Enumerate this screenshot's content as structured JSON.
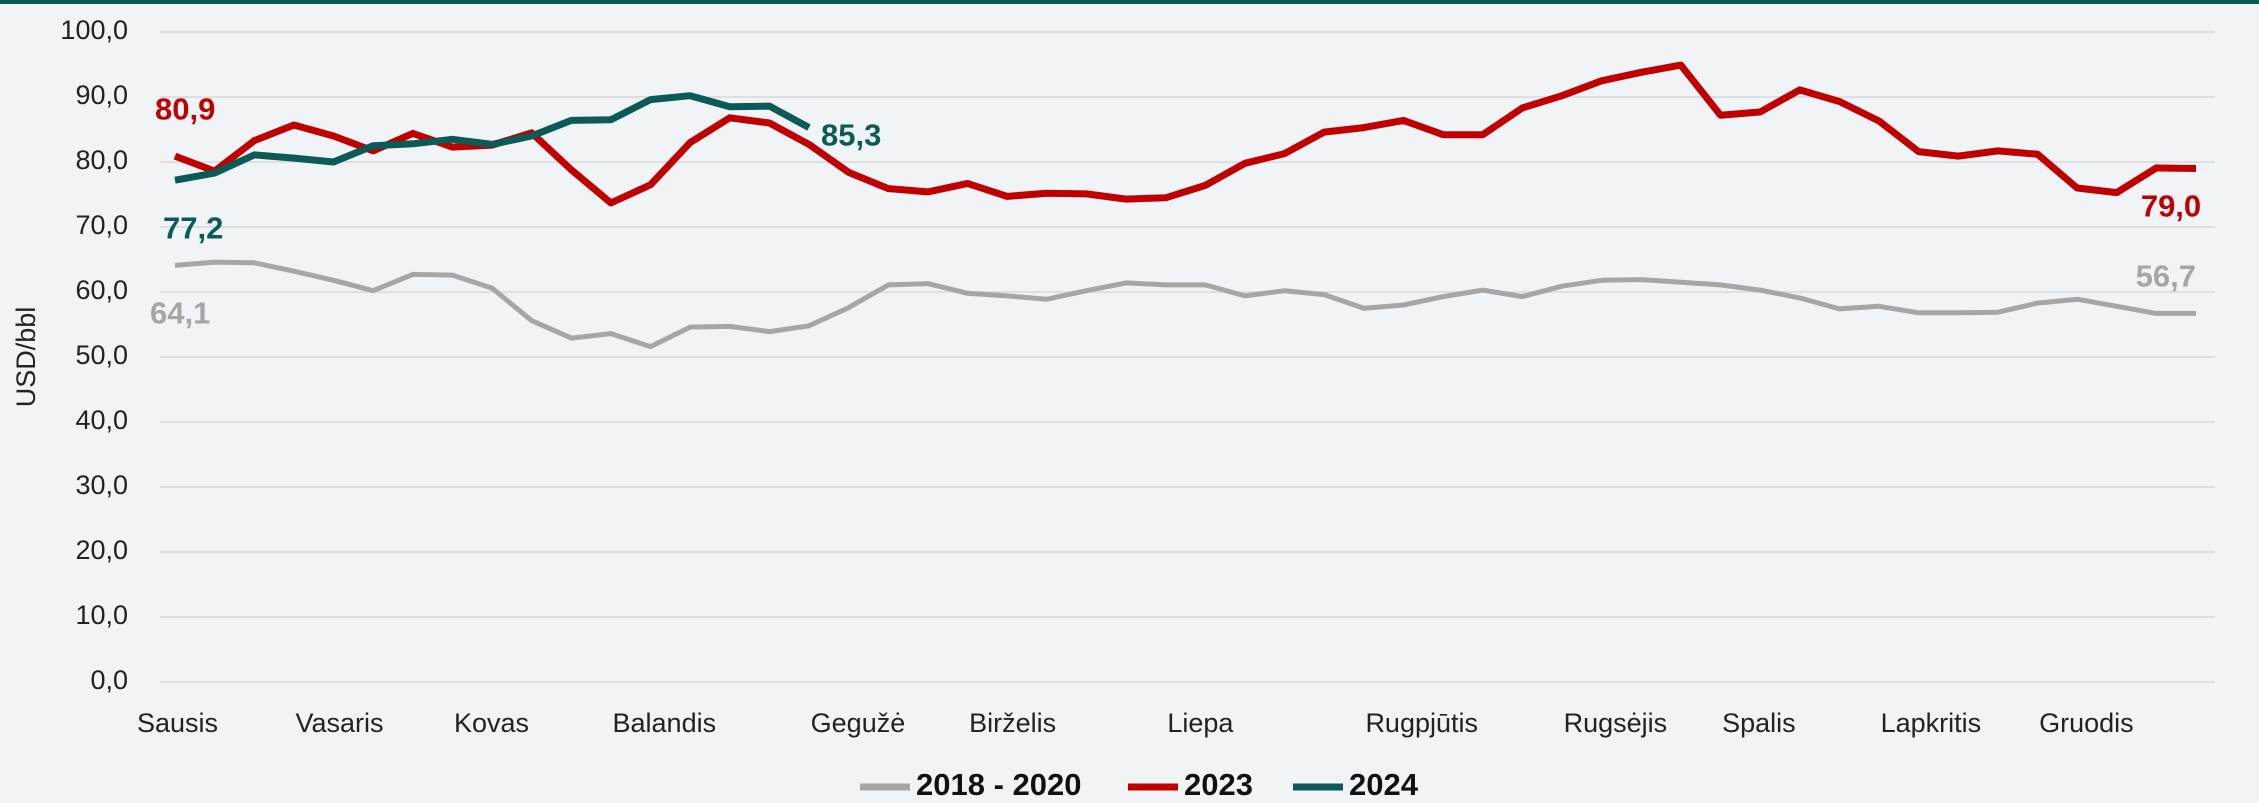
{
  "chart_data": {
    "type": "line",
    "y_label": "USD/bbl",
    "categories": [
      "Sausis",
      null,
      null,
      null,
      "Vasaris",
      null,
      null,
      null,
      "Kovas",
      null,
      null,
      null,
      "Balandis",
      null,
      null,
      null,
      null,
      "Gegužė",
      null,
      null,
      null,
      "Birželis",
      null,
      null,
      null,
      null,
      "Liepa",
      null,
      null,
      null,
      null,
      "Rugpjūtis",
      null,
      null,
      null,
      null,
      "Rugsėjis",
      null,
      null,
      null,
      "Spalis",
      null,
      null,
      null,
      "Lapkritis",
      null,
      null,
      null,
      "Gruodis",
      null,
      null,
      null
    ],
    "series": [
      {
        "name": "2018 - 2020",
        "color": "#a6a6a6",
        "values": [
          64.1,
          64.6,
          64.5,
          63.2,
          61.8,
          60.2,
          62.7,
          62.6,
          60.6,
          55.6,
          52.9,
          53.6,
          51.6,
          54.6,
          54.7,
          53.9,
          54.8,
          57.6,
          61.1,
          61.3,
          59.8,
          59.4,
          58.9,
          60.2,
          61.4,
          61.1,
          61.1,
          59.4,
          60.2,
          59.6,
          57.5,
          58.0,
          59.3,
          60.3,
          59.3,
          60.9,
          61.8,
          61.9,
          61.5,
          61.1,
          60.3,
          59.1,
          57.4,
          57.8,
          56.8,
          56.8,
          56.9,
          58.3,
          58.9,
          57.8,
          56.7,
          56.7
        ],
        "value_labels": [
          "64,1",
          null,
          null,
          null,
          null,
          null,
          null,
          null,
          null,
          null,
          null,
          null,
          null,
          null,
          null,
          null,
          null,
          null,
          null,
          null,
          null,
          null,
          null,
          null,
          null,
          null,
          null,
          null,
          null,
          null,
          null,
          null,
          null,
          null,
          null,
          null,
          null,
          null,
          null,
          null,
          null,
          null,
          null,
          null,
          null,
          null,
          null,
          null,
          null,
          null,
          null,
          "56,7"
        ]
      },
      {
        "name": "2023",
        "color": "#c00000",
        "values": [
          80.9,
          78.6,
          83.3,
          85.7,
          84.0,
          81.7,
          84.4,
          82.3,
          82.6,
          84.5,
          78.8,
          73.7,
          76.5,
          83.0,
          86.8,
          86.0,
          82.7,
          78.4,
          75.9,
          75.4,
          76.7,
          74.7,
          75.2,
          75.1,
          74.3,
          74.5,
          76.4,
          79.8,
          81.3,
          84.6,
          85.3,
          86.4,
          84.2,
          84.2,
          88.3,
          90.2,
          92.5,
          93.8,
          94.9,
          87.2,
          87.7,
          91.1,
          89.3,
          86.3,
          81.6,
          80.9,
          81.7,
          81.2,
          76.0,
          75.3,
          79.1,
          79.0
        ],
        "value_labels": [
          "80,9",
          null,
          null,
          null,
          null,
          null,
          null,
          null,
          null,
          null,
          null,
          null,
          null,
          null,
          null,
          null,
          null,
          null,
          null,
          null,
          null,
          null,
          null,
          null,
          null,
          null,
          null,
          null,
          null,
          null,
          null,
          null,
          null,
          null,
          null,
          null,
          null,
          null,
          null,
          null,
          null,
          null,
          null,
          null,
          null,
          null,
          null,
          null,
          null,
          null,
          null,
          "79,0"
        ]
      },
      {
        "name": "2024",
        "color": "#0b5a55",
        "values": [
          77.2,
          78.3,
          81.1,
          80.6,
          80.0,
          82.5,
          82.8,
          83.5,
          82.7,
          84.0,
          86.4,
          86.5,
          89.6,
          90.2,
          88.5,
          88.6,
          85.3,
          null,
          null,
          null,
          null,
          null,
          null,
          null,
          null,
          null,
          null,
          null,
          null,
          null,
          null,
          null,
          null,
          null,
          null,
          null,
          null,
          null,
          null,
          null,
          null,
          null,
          null,
          null,
          null,
          null,
          null,
          null,
          null,
          null,
          null,
          null
        ],
        "value_labels": [
          "77,2",
          null,
          null,
          null,
          null,
          null,
          null,
          null,
          null,
          null,
          null,
          null,
          null,
          null,
          null,
          null,
          "85,3",
          null,
          null,
          null,
          null,
          null,
          null,
          null,
          null,
          null,
          null,
          null,
          null,
          null,
          null,
          null,
          null,
          null,
          null,
          null,
          null,
          null,
          null,
          null,
          null,
          null,
          null,
          null,
          null,
          null,
          null,
          null,
          null,
          null,
          null,
          null
        ]
      }
    ],
    "ylim": [
      0,
      100
    ],
    "yticks": [
      {
        "value": 0,
        "label": "0,0"
      },
      {
        "value": 10,
        "label": "10,0"
      },
      {
        "value": 20,
        "label": "20,0"
      },
      {
        "value": 30,
        "label": "30,0"
      },
      {
        "value": 40,
        "label": "40,0"
      },
      {
        "value": 50,
        "label": "50,0"
      },
      {
        "value": 60,
        "label": "60,0"
      },
      {
        "value": 70,
        "label": "70,0"
      },
      {
        "value": 80,
        "label": "80,0"
      },
      {
        "value": 90,
        "label": "90,0"
      },
      {
        "value": 100,
        "label": "100,0"
      }
    ],
    "grid": true,
    "legend": "bottom"
  }
}
